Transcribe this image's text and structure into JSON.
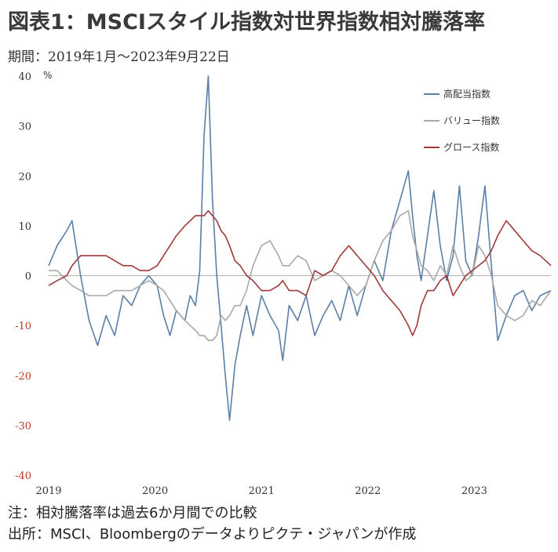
{
  "title": "図表1：MSCIスタイル指数対世界指数相対騰落率",
  "period": "期間：2019年1月～2023年9月22日",
  "unit": "%",
  "notes": {
    "note1": "注：相対騰落率は過去6か月間での比較",
    "note2": "出所：MSCI、Bloombergのデータよりピクテ・ジャパンが作成"
  },
  "chart_data": {
    "type": "line",
    "yticks": [
      "40",
      "30",
      "20",
      "10",
      "0",
      "-10",
      "-20",
      "-30",
      "-40"
    ],
    "xticks": [
      "2019",
      "2020",
      "2021",
      "2022",
      "2023"
    ],
    "ylim": [
      -40,
      40
    ],
    "xlim": [
      2019.0,
      2023.72
    ],
    "legend_position": "top-right",
    "colors": {
      "negative_tick": "#c0392b",
      "positive_tick": "#333333",
      "zero_line": "#bdbdbd"
    },
    "series": [
      {
        "name": "高配当指数",
        "color": "#5b7fa6",
        "x": [
          2019.0,
          2019.08,
          2019.17,
          2019.22,
          2019.3,
          2019.38,
          2019.46,
          2019.54,
          2019.62,
          2019.7,
          2019.78,
          2019.86,
          2019.94,
          2020.02,
          2020.08,
          2020.14,
          2020.2,
          2020.28,
          2020.33,
          2020.38,
          2020.42,
          2020.46,
          2020.5,
          2020.54,
          2020.58,
          2020.62,
          2020.66,
          2020.7,
          2020.75,
          2020.8,
          2020.86,
          2020.92,
          2021.0,
          2021.08,
          2021.16,
          2021.2,
          2021.26,
          2021.34,
          2021.42,
          2021.5,
          2021.58,
          2021.66,
          2021.74,
          2021.82,
          2021.9,
          2021.98,
          2022.06,
          2022.14,
          2022.22,
          2022.3,
          2022.38,
          2022.42,
          2022.46,
          2022.5,
          2022.56,
          2022.62,
          2022.68,
          2022.74,
          2022.8,
          2022.86,
          2022.92,
          2022.98,
          2023.04,
          2023.1,
          2023.16,
          2023.22,
          2023.3,
          2023.38,
          2023.46,
          2023.54,
          2023.62,
          2023.72
        ],
        "y": [
          2,
          6,
          9,
          11,
          0,
          -9,
          -14,
          -8,
          -12,
          -4,
          -6,
          -2,
          0,
          -2,
          -8,
          -12,
          -7,
          -9,
          -4,
          -6,
          1,
          28,
          40,
          15,
          0,
          -10,
          -20,
          -29,
          -18,
          -12,
          -6,
          -12,
          -4,
          -8,
          -11,
          -17,
          -6,
          -9,
          -4,
          -12,
          -8,
          -5,
          -9,
          -2,
          -8,
          -2,
          3,
          -1,
          9,
          15,
          21,
          12,
          4,
          -1,
          8,
          17,
          6,
          -1,
          4,
          18,
          3,
          0,
          8,
          18,
          2,
          -13,
          -8,
          -4,
          -3,
          -7,
          -4,
          -3
        ]
      },
      {
        "name": "バリュー指数",
        "color": "#a9a9a9",
        "x": [
          2019.0,
          2019.08,
          2019.17,
          2019.22,
          2019.3,
          2019.38,
          2019.46,
          2019.54,
          2019.62,
          2019.7,
          2019.78,
          2019.86,
          2019.94,
          2020.02,
          2020.08,
          2020.14,
          2020.2,
          2020.28,
          2020.33,
          2020.38,
          2020.42,
          2020.46,
          2020.5,
          2020.54,
          2020.58,
          2020.62,
          2020.66,
          2020.7,
          2020.75,
          2020.8,
          2020.86,
          2020.92,
          2021.0,
          2021.08,
          2021.16,
          2021.2,
          2021.26,
          2021.34,
          2021.42,
          2021.5,
          2021.58,
          2021.66,
          2021.74,
          2021.82,
          2021.9,
          2021.98,
          2022.06,
          2022.14,
          2022.22,
          2022.3,
          2022.38,
          2022.42,
          2022.46,
          2022.5,
          2022.56,
          2022.62,
          2022.68,
          2022.74,
          2022.8,
          2022.86,
          2022.92,
          2022.98,
          2023.04,
          2023.1,
          2023.16,
          2023.22,
          2023.3,
          2023.38,
          2023.46,
          2023.54,
          2023.62,
          2023.72
        ],
        "y": [
          1,
          1,
          -1,
          -2,
          -3,
          -4,
          -4,
          -4,
          -3,
          -3,
          -3,
          -2,
          -1,
          -2,
          -3,
          -5,
          -7,
          -9,
          -10,
          -11,
          -12,
          -12,
          -13,
          -13,
          -12,
          -8,
          -9,
          -8,
          -6,
          -6,
          -3,
          2,
          6,
          7,
          4,
          2,
          2,
          4,
          3,
          -1,
          0,
          1,
          0,
          -2,
          -4,
          -2,
          3,
          7,
          9,
          12,
          13,
          8,
          5,
          2,
          1,
          -1,
          2,
          0,
          6,
          2,
          -1,
          0,
          6,
          4,
          0,
          -6,
          -8,
          -9,
          -8,
          -5,
          -6,
          -3
        ]
      },
      {
        "name": "グロース指数",
        "color": "#9e3a3a",
        "x": [
          2019.0,
          2019.08,
          2019.17,
          2019.22,
          2019.3,
          2019.38,
          2019.46,
          2019.54,
          2019.62,
          2019.7,
          2019.78,
          2019.86,
          2019.94,
          2020.02,
          2020.08,
          2020.14,
          2020.2,
          2020.28,
          2020.33,
          2020.38,
          2020.42,
          2020.46,
          2020.5,
          2020.54,
          2020.58,
          2020.62,
          2020.66,
          2020.7,
          2020.75,
          2020.8,
          2020.86,
          2020.92,
          2021.0,
          2021.08,
          2021.16,
          2021.2,
          2021.26,
          2021.34,
          2021.42,
          2021.5,
          2021.58,
          2021.66,
          2021.74,
          2021.82,
          2021.9,
          2021.98,
          2022.06,
          2022.14,
          2022.22,
          2022.3,
          2022.38,
          2022.42,
          2022.46,
          2022.5,
          2022.56,
          2022.62,
          2022.68,
          2022.74,
          2022.8,
          2022.86,
          2022.92,
          2022.98,
          2023.04,
          2023.1,
          2023.16,
          2023.22,
          2023.3,
          2023.38,
          2023.46,
          2023.54,
          2023.62,
          2023.72
        ],
        "y": [
          -2,
          -1,
          0,
          2,
          4,
          4,
          4,
          4,
          3,
          2,
          2,
          1,
          1,
          2,
          4,
          6,
          8,
          10,
          11,
          12,
          12,
          12,
          13,
          12,
          11,
          9,
          8,
          6,
          3,
          2,
          0,
          -1,
          -3,
          -3,
          -2,
          -1,
          -3,
          -3,
          -4,
          1,
          0,
          1,
          4,
          6,
          4,
          2,
          0,
          -3,
          -5,
          -7,
          -10,
          -12,
          -10,
          -6,
          -3,
          -3,
          -1,
          0,
          -4,
          -2,
          0,
          1,
          2,
          3,
          5,
          8,
          11,
          9,
          7,
          5,
          4,
          2
        ]
      }
    ]
  }
}
